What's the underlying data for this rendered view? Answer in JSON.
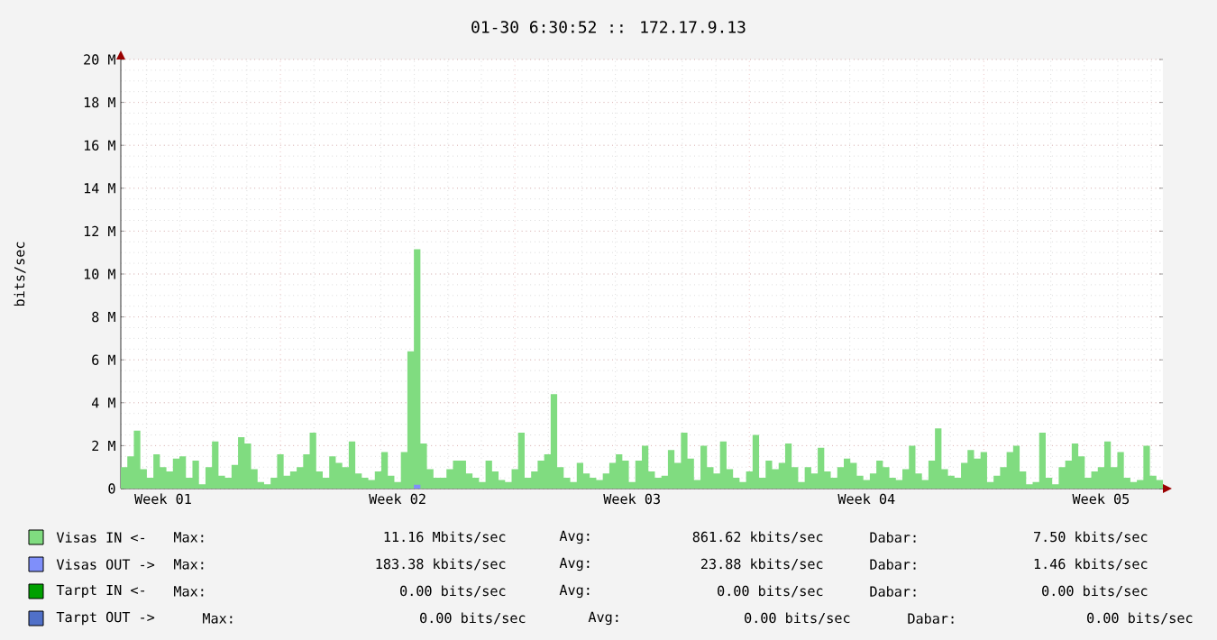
{
  "chart_data": {
    "type": "area",
    "title": "01-30 6:30:52 :: 172.17.9.13",
    "ylabel": "bits/sec",
    "categories": [
      null,
      null,
      null,
      null,
      null,
      null,
      "Week 01",
      null,
      null,
      null,
      null,
      null,
      null,
      null,
      null,
      null,
      null,
      null,
      null,
      null,
      null,
      null,
      null,
      null,
      null,
      null,
      null,
      null,
      null,
      null,
      null,
      null,
      null,
      null,
      null,
      null,
      null,
      null,
      null,
      null,
      null,
      null,
      "Week 02",
      null,
      null,
      null,
      null,
      null,
      null,
      null,
      null,
      null,
      null,
      null,
      null,
      null,
      null,
      null,
      null,
      null,
      null,
      null,
      null,
      null,
      null,
      null,
      null,
      null,
      null,
      null,
      null,
      null,
      null,
      null,
      null,
      null,
      null,
      null,
      "Week 03",
      null,
      null,
      null,
      null,
      null,
      null,
      null,
      null,
      null,
      null,
      null,
      null,
      null,
      null,
      null,
      null,
      null,
      null,
      null,
      null,
      null,
      null,
      null,
      null,
      null,
      null,
      null,
      null,
      null,
      null,
      null,
      null,
      null,
      null,
      null,
      "Week 04",
      null,
      null,
      null,
      null,
      null,
      null,
      null,
      null,
      null,
      null,
      null,
      null,
      null,
      null,
      null,
      null,
      null,
      null,
      null,
      null,
      null,
      null,
      null,
      null,
      null,
      null,
      null,
      null,
      null,
      null,
      null,
      null,
      null,
      null,
      null,
      "Week 05",
      null,
      null,
      null,
      null,
      null,
      null,
      null,
      null,
      null
    ],
    "ylim": [
      0,
      20000000
    ],
    "yticks": [
      {
        "value": 0,
        "label": "0"
      },
      {
        "value": 2000000,
        "label": "2 M"
      },
      {
        "value": 4000000,
        "label": "4 M"
      },
      {
        "value": 6000000,
        "label": "6 M"
      },
      {
        "value": 8000000,
        "label": "8 M"
      },
      {
        "value": 10000000,
        "label": "10 M"
      },
      {
        "value": 12000000,
        "label": "12 M"
      },
      {
        "value": 14000000,
        "label": "14 M"
      },
      {
        "value": 16000000,
        "label": "16 M"
      },
      {
        "value": 18000000,
        "label": "18 M"
      },
      {
        "value": 20000000,
        "label": "20 M"
      }
    ],
    "grid": true,
    "legend": "bottom",
    "marker": "none",
    "series": [
      {
        "name": "Visas IN  <-",
        "color": "#80dc80",
        "values": [
          1000000,
          1500000,
          2700000,
          900000,
          500000,
          1600000,
          1000000,
          800000,
          1400000,
          1500000,
          500000,
          1300000,
          200000,
          1000000,
          2200000,
          600000,
          500000,
          1100000,
          2400000,
          2100000,
          900000,
          300000,
          200000,
          500000,
          1600000,
          600000,
          800000,
          1000000,
          1600000,
          2600000,
          800000,
          500000,
          1500000,
          1200000,
          1000000,
          2200000,
          700000,
          500000,
          400000,
          800000,
          1700000,
          600000,
          300000,
          1700000,
          6400000,
          11160000,
          2100000,
          900000,
          500000,
          500000,
          900000,
          1300000,
          1300000,
          700000,
          500000,
          300000,
          1300000,
          800000,
          400000,
          300000,
          900000,
          2600000,
          500000,
          800000,
          1300000,
          1600000,
          4400000,
          1000000,
          500000,
          300000,
          1200000,
          700000,
          500000,
          400000,
          700000,
          1200000,
          1600000,
          1300000,
          300000,
          1300000,
          2000000,
          800000,
          500000,
          600000,
          1800000,
          1200000,
          2600000,
          1400000,
          400000,
          2000000,
          1000000,
          700000,
          2200000,
          900000,
          500000,
          300000,
          800000,
          2500000,
          500000,
          1300000,
          900000,
          1200000,
          2100000,
          1000000,
          300000,
          1000000,
          700000,
          1900000,
          800000,
          500000,
          1000000,
          1400000,
          1200000,
          600000,
          400000,
          700000,
          1300000,
          1000000,
          500000,
          400000,
          900000,
          2000000,
          700000,
          400000,
          1300000,
          2800000,
          900000,
          600000,
          500000,
          1200000,
          1800000,
          1400000,
          1700000,
          300000,
          600000,
          1000000,
          1700000,
          2000000,
          800000,
          200000,
          300000,
          2600000,
          500000,
          200000,
          1000000,
          1300000,
          2100000,
          1500000,
          500000,
          800000,
          1000000,
          2200000,
          1000000,
          1700000,
          500000,
          300000,
          400000,
          2000000,
          600000,
          400000
        ]
      },
      {
        "name": "Visas OUT ->",
        "color": "#7f8ffa",
        "values": [
          0,
          0,
          0,
          0,
          0,
          0,
          0,
          0,
          0,
          0,
          0,
          0,
          0,
          0,
          0,
          0,
          0,
          0,
          0,
          0,
          0,
          0,
          0,
          0,
          0,
          0,
          0,
          0,
          0,
          0,
          0,
          0,
          0,
          0,
          0,
          0,
          0,
          0,
          0,
          0,
          0,
          0,
          0,
          0,
          0,
          183380,
          0,
          0,
          0,
          0,
          0,
          0,
          0,
          0,
          0,
          0,
          0,
          0,
          0,
          0,
          0,
          0,
          0,
          0,
          0,
          0,
          0,
          0,
          0,
          0,
          0,
          0,
          0,
          0,
          0,
          0,
          0,
          0,
          0,
          0,
          0,
          0,
          0,
          0,
          0,
          0,
          0,
          0,
          0,
          0,
          0,
          0,
          0,
          0,
          0,
          0,
          0,
          0,
          0,
          0,
          0,
          0,
          0,
          0,
          0,
          0,
          0,
          0,
          0,
          0,
          0,
          0,
          0,
          0,
          0,
          0,
          0,
          0,
          0,
          0,
          0,
          0,
          0,
          0,
          0,
          0,
          0,
          0,
          0,
          0,
          0,
          0,
          0,
          0,
          0,
          0,
          0,
          0,
          0,
          0,
          0,
          0,
          0,
          0,
          0,
          0,
          0,
          0,
          0,
          0,
          0,
          0,
          0,
          0,
          0,
          0,
          0,
          0,
          0,
          0
        ]
      },
      {
        "name": "Tarpt IN  <-",
        "color": "#00a000",
        "values": [
          null,
          null,
          null,
          null,
          null,
          null,
          null,
          null,
          null,
          null,
          null,
          null,
          null,
          null,
          null,
          null,
          null,
          null,
          null,
          null,
          null,
          null,
          null,
          null,
          null,
          null,
          null,
          null,
          null,
          null,
          null,
          null,
          null,
          null,
          null,
          null,
          null,
          null,
          null,
          null,
          null,
          null,
          null,
          null,
          null,
          null,
          null,
          null,
          null,
          null,
          null,
          null,
          null,
          null,
          null,
          null,
          null,
          null,
          null,
          null,
          null,
          null,
          null,
          null,
          null,
          null,
          null,
          null,
          null,
          null,
          null,
          null,
          null,
          null,
          null,
          null,
          null,
          null,
          null,
          null,
          null,
          null,
          null,
          null,
          null,
          null,
          null,
          null,
          null,
          null,
          null,
          null,
          null,
          null,
          null,
          null,
          null,
          null,
          null,
          null,
          null,
          null,
          null,
          null,
          null,
          null,
          null,
          null,
          null,
          null,
          null,
          null,
          null,
          null,
          null,
          null,
          null,
          null,
          null,
          null,
          null,
          null,
          null,
          null,
          null,
          null,
          null,
          null,
          null,
          null,
          null,
          null,
          null,
          null,
          null,
          null,
          null,
          null,
          null,
          null,
          null,
          null,
          null,
          null,
          null,
          null,
          null,
          null,
          null,
          null,
          null,
          null,
          null,
          null,
          null,
          null,
          null,
          null,
          null,
          null
        ]
      },
      {
        "name": "Tarpt OUT ->",
        "color": "#5070c8",
        "values": [
          null,
          null,
          null,
          null,
          null,
          null,
          null,
          null,
          null,
          null,
          null,
          null,
          null,
          null,
          null,
          null,
          null,
          null,
          null,
          null,
          null,
          null,
          null,
          null,
          null,
          null,
          null,
          null,
          null,
          null,
          null,
          null,
          null,
          null,
          null,
          null,
          null,
          null,
          null,
          null,
          null,
          null,
          null,
          null,
          null,
          null,
          null,
          null,
          null,
          null,
          null,
          null,
          null,
          null,
          null,
          null,
          null,
          null,
          null,
          null,
          null,
          null,
          null,
          null,
          null,
          null,
          null,
          null,
          null,
          null,
          null,
          null,
          null,
          null,
          null,
          null,
          null,
          null,
          null,
          null,
          null,
          null,
          null,
          null,
          null,
          null,
          null,
          null,
          null,
          null,
          null,
          null,
          null,
          null,
          null,
          null,
          null,
          null,
          null,
          null,
          null,
          null,
          null,
          null,
          null,
          null,
          null,
          null,
          null,
          null,
          null,
          null,
          null,
          null,
          null,
          null,
          null,
          null,
          null,
          null,
          null,
          null,
          null,
          null,
          null,
          null,
          null,
          null,
          null,
          null,
          null,
          null,
          null,
          null,
          null,
          null,
          null,
          null,
          null,
          null,
          null,
          null,
          null,
          null,
          null,
          null,
          null,
          null,
          null,
          null,
          null,
          null,
          null,
          null,
          null,
          null,
          null,
          null,
          null,
          null
        ]
      }
    ],
    "annotations": [
      "Max:",
      "11.16 Mbits/sec",
      "Avg:",
      "861.62 kbits/sec",
      "Dabar:",
      "7.50 kbits/sec",
      "Max:",
      "183.38 kbits/sec",
      "Avg:",
      "23.88 kbits/sec",
      "Dabar:",
      "1.46 kbits/sec",
      "Max:",
      "0.00  bits/sec",
      "Avg:",
      "0.00  bits/sec",
      "Dabar:",
      "0.00  bits/sec",
      "Max:",
      "0.00  bits/sec",
      "Avg:",
      "0.00  bits/sec",
      "Dabar:",
      "0.00  bits/sec"
    ]
  }
}
